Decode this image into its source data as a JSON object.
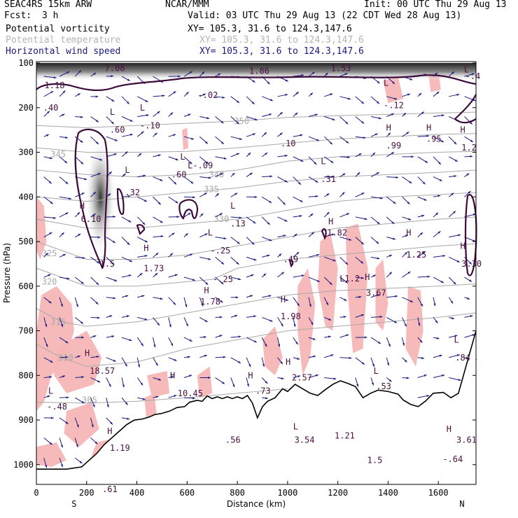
{
  "header": {
    "model": "SEAC4RS 15km ARW",
    "org": "NCAR/MMM",
    "init": "Init: 00 UTC Thu 29 Aug 13",
    "fcst_label": "Fcst:",
    "fcst_value": "3 h",
    "valid": "Valid: 03 UTC Thu 29 Aug 13 (22 CDT Wed 28 Aug 13)",
    "fields": [
      {
        "name": "Potential vorticity",
        "xy": "XY= 105.3, 31.6 to 124.3,147.6",
        "color": "#000000"
      },
      {
        "name": "Potential temperature",
        "xy": "XY= 105.3, 31.6 to 124.3,147.6",
        "color": "#b4b4b4"
      },
      {
        "name": "Horizontal wind speed",
        "xy": "XY= 105.3, 31.6 to 124.3,147.6",
        "color": "#1a1a80"
      }
    ]
  },
  "chart_data": {
    "type": "cross-section",
    "xlabel": "Distance (km)",
    "ylabel": "Pressure (hPa)",
    "xlim": [
      0,
      1750
    ],
    "ylim": [
      1000,
      100
    ],
    "x_ticks": [
      0,
      200,
      400,
      600,
      800,
      1000,
      1200,
      1400,
      1600
    ],
    "y_ticks": [
      100,
      200,
      300,
      400,
      500,
      600,
      700,
      800,
      900,
      1000
    ],
    "x_end_labels": {
      "left": "S",
      "right": "N"
    },
    "colors": {
      "pv_contour": "#3c0a3c",
      "theta": "#a8a8a8",
      "wind": "#1a1a80",
      "shading": "#f7b6b6",
      "terrain": "#000000"
    },
    "terrain": [
      [
        0,
        1010
      ],
      [
        60,
        1010
      ],
      [
        120,
        1010
      ],
      [
        180,
        1005
      ],
      [
        210,
        990
      ],
      [
        240,
        975
      ],
      [
        270,
        955
      ],
      [
        300,
        940
      ],
      [
        330,
        925
      ],
      [
        360,
        910
      ],
      [
        390,
        900
      ],
      [
        420,
        898
      ],
      [
        450,
        893
      ],
      [
        470,
        888
      ],
      [
        500,
        885
      ],
      [
        530,
        880
      ],
      [
        560,
        872
      ],
      [
        590,
        870
      ],
      [
        610,
        860
      ],
      [
        640,
        856
      ],
      [
        660,
        858
      ],
      [
        680,
        846
      ],
      [
        700,
        852
      ],
      [
        720,
        848
      ],
      [
        740,
        852
      ],
      [
        760,
        848
      ],
      [
        780,
        852
      ],
      [
        800,
        848
      ],
      [
        820,
        852
      ],
      [
        840,
        845
      ],
      [
        860,
        862
      ],
      [
        880,
        895
      ],
      [
        900,
        870
      ],
      [
        920,
        858
      ],
      [
        950,
        850
      ],
      [
        980,
        830
      ],
      [
        1000,
        836
      ],
      [
        1030,
        820
      ],
      [
        1060,
        830
      ],
      [
        1090,
        840
      ],
      [
        1120,
        845
      ],
      [
        1150,
        832
      ],
      [
        1180,
        820
      ],
      [
        1210,
        812
      ],
      [
        1240,
        818
      ],
      [
        1270,
        825
      ],
      [
        1300,
        850
      ],
      [
        1330,
        840
      ],
      [
        1360,
        833
      ],
      [
        1400,
        836
      ],
      [
        1440,
        842
      ],
      [
        1460,
        855
      ],
      [
        1490,
        865
      ],
      [
        1520,
        870
      ],
      [
        1550,
        857
      ],
      [
        1580,
        840
      ],
      [
        1620,
        838
      ],
      [
        1650,
        850
      ],
      [
        1680,
        840
      ],
      [
        1710,
        780
      ],
      [
        1730,
        740
      ],
      [
        1750,
        700
      ]
    ],
    "theta_isentropes": [
      {
        "value": 305,
        "label_at": [
          215,
          855
        ],
        "points": [
          [
            0,
            860
          ],
          [
            200,
            862
          ],
          [
            400,
            858
          ],
          [
            600,
            850
          ],
          [
            800,
            840
          ],
          [
            1000,
            830
          ]
        ]
      },
      {
        "value": 310,
        "label_at": [
          120,
          760
        ],
        "points": [
          [
            0,
            730
          ],
          [
            100,
            760
          ],
          [
            200,
            780
          ],
          [
            400,
            770
          ],
          [
            600,
            740
          ],
          [
            800,
            720
          ],
          [
            1000,
            700
          ],
          [
            1200,
            690
          ],
          [
            1400,
            680
          ],
          [
            1600,
            670
          ],
          [
            1750,
            660
          ]
        ]
      },
      {
        "value": 315,
        "label_at": [
          90,
          680
        ],
        "points": [
          [
            0,
            650
          ],
          [
            100,
            680
          ],
          [
            200,
            690
          ],
          [
            400,
            680
          ],
          [
            600,
            660
          ],
          [
            800,
            640
          ],
          [
            1000,
            620
          ],
          [
            1200,
            610
          ],
          [
            1400,
            605
          ],
          [
            1600,
            600
          ],
          [
            1750,
            595
          ]
        ]
      },
      {
        "value": 320,
        "label_at": [
          55,
          590
        ],
        "points": [
          [
            0,
            560
          ],
          [
            100,
            580
          ],
          [
            200,
            600
          ],
          [
            400,
            600
          ],
          [
            600,
            590
          ],
          [
            700,
            585
          ],
          [
            800,
            560
          ],
          [
            1000,
            540
          ],
          [
            1200,
            530
          ],
          [
            1400,
            520
          ],
          [
            1600,
            510
          ],
          [
            1750,
            505
          ]
        ]
      },
      {
        "value": 325,
        "label_at": [
          55,
          527
        ],
        "points": [
          [
            0,
            500
          ],
          [
            100,
            520
          ],
          [
            200,
            540
          ],
          [
            400,
            540
          ],
          [
            600,
            530
          ],
          [
            800,
            510
          ],
          [
            1000,
            490
          ],
          [
            1200,
            470
          ],
          [
            1400,
            460
          ],
          [
            1600,
            450
          ],
          [
            1750,
            445
          ]
        ]
      },
      {
        "value": 330,
        "label_at": [
          740,
          450
        ],
        "points": [
          [
            0,
            450
          ],
          [
            200,
            470
          ],
          [
            400,
            470
          ],
          [
            600,
            460
          ],
          [
            800,
            450
          ],
          [
            1000,
            430
          ],
          [
            1200,
            410
          ],
          [
            1400,
            400
          ],
          [
            1600,
            395
          ],
          [
            1750,
            390
          ]
        ]
      },
      {
        "value": 335,
        "label_at": [
          700,
          383
        ],
        "points": [
          [
            0,
            400
          ],
          [
            200,
            410
          ],
          [
            400,
            400
          ],
          [
            600,
            390
          ],
          [
            800,
            380
          ],
          [
            1000,
            365
          ],
          [
            1200,
            355
          ],
          [
            1400,
            350
          ],
          [
            1600,
            345
          ],
          [
            1750,
            340
          ]
        ]
      },
      {
        "value": 340,
        "label_at": [
          720,
          350
        ],
        "points": [
          [
            0,
            340
          ],
          [
            200,
            350
          ],
          [
            400,
            355
          ],
          [
            600,
            350
          ],
          [
            800,
            340
          ],
          [
            1000,
            320
          ],
          [
            1200,
            310
          ],
          [
            1400,
            305
          ],
          [
            1600,
            300
          ],
          [
            1750,
            298
          ]
        ]
      },
      {
        "value": 345,
        "label_at": [
          90,
          305
        ],
        "points": [
          [
            0,
            290
          ],
          [
            200,
            300
          ],
          [
            400,
            300
          ],
          [
            600,
            298
          ],
          [
            800,
            290
          ],
          [
            1000,
            280
          ],
          [
            1200,
            270
          ],
          [
            1400,
            265
          ],
          [
            1600,
            260
          ],
          [
            1750,
            258
          ]
        ]
      },
      {
        "value": 350,
        "label_at": [
          820,
          230
        ],
        "points": [
          [
            0,
            240
          ],
          [
            200,
            245
          ],
          [
            400,
            240
          ],
          [
            600,
            235
          ],
          [
            800,
            230
          ],
          [
            1000,
            222
          ],
          [
            1200,
            218
          ],
          [
            1400,
            215
          ],
          [
            1600,
            212
          ],
          [
            1750,
            210
          ]
        ]
      }
    ],
    "pv_labels": [
      {
        "text": "1.18",
        "x": 60,
        "p": 150
      },
      {
        "text": ".40",
        "x": 55,
        "p": 200
      },
      {
        "text": "L",
        "x": 320,
        "p": 210
      },
      {
        "text": ".60",
        "x": 320,
        "p": 250
      },
      {
        "text": "L",
        "x": 440,
        "p": 200
      },
      {
        "text": "-.10",
        "x": 440,
        "p": 240
      },
      {
        "text": "-.02",
        "x": 670,
        "p": 172
      },
      {
        "text": "1.86",
        "x": 875,
        "p": 118
      },
      {
        "text": "1.53",
        "x": 1200,
        "p": 112
      },
      {
        "text": "L",
        "x": 1410,
        "p": 145
      },
      {
        "text": "-.12",
        "x": 1410,
        "p": 195
      },
      {
        "text": "H",
        "x": 1420,
        "p": 245
      },
      {
        "text": ".99",
        "x": 1420,
        "p": 285
      },
      {
        "text": "H",
        "x": 1580,
        "p": 245
      },
      {
        "text": ".95",
        "x": 1580,
        "p": 270
      },
      {
        "text": "H",
        "x": 1715,
        "p": 250
      },
      {
        "text": "1.2",
        "x": 1720,
        "p": 290
      },
      {
        "text": ".10",
        "x": 1000,
        "p": 280
      },
      {
        "text": "L",
        "x": 600,
        "p": 310
      },
      {
        "text": ".60",
        "x": 565,
        "p": 350
      },
      {
        "text": "L-.09",
        "x": 630,
        "p": 330
      },
      {
        "text": "L",
        "x": 380,
        "p": 340
      },
      {
        "text": ".32",
        "x": 380,
        "p": 390
      },
      {
        "text": "L",
        "x": 1160,
        "p": 320
      },
      {
        "text": ".31",
        "x": 1160,
        "p": 360
      },
      {
        "text": "H",
        "x": 200,
        "p": 420
      },
      {
        "text": "6.10",
        "x": 205,
        "p": 450
      },
      {
        "text": "L",
        "x": 800,
        "p": 420
      },
      {
        "text": ".13",
        "x": 800,
        "p": 460
      },
      {
        "text": "L",
        "x": 710,
        "p": 480
      },
      {
        "text": "-.25",
        "x": 720,
        "p": 520
      },
      {
        "text": "-.25",
        "x": 730,
        "p": 585
      },
      {
        "text": "H",
        "x": 1190,
        "p": 455
      },
      {
        "text": "1.82",
        "x": 1185,
        "p": 480
      },
      {
        "text": "H",
        "x": 1500,
        "p": 480
      },
      {
        "text": "1.25",
        "x": 1500,
        "p": 530
      },
      {
        "text": "H",
        "x": 1715,
        "p": 510
      },
      {
        "text": "3.30",
        "x": 1720,
        "p": 550
      },
      {
        "text": ".49",
        "x": 1010,
        "p": 540
      },
      {
        "text": "H",
        "x": 455,
        "p": 515
      },
      {
        "text": "1.73",
        "x": 455,
        "p": 560
      },
      {
        "text": "1.5",
        "x": 280,
        "p": 550
      },
      {
        "text": "H",
        "x": 695,
        "p": 610
      },
      {
        "text": "1.78",
        "x": 680,
        "p": 635
      },
      {
        "text": "H",
        "x": 1000,
        "p": 630
      },
      {
        "text": "1.98",
        "x": 1000,
        "p": 668
      },
      {
        "text": "L",
        "x": 1235,
        "p": 583
      },
      {
        "text": "-1.2",
        "x": 1235,
        "p": 583
      },
      {
        "text": "H",
        "x": 1335,
        "p": 580
      },
      {
        "text": "3.67",
        "x": 1340,
        "p": 615
      },
      {
        "text": "L",
        "x": 1690,
        "p": 720
      },
      {
        "text": ".84",
        "x": 1695,
        "p": 760
      },
      {
        "text": "H",
        "x": 220,
        "p": 750
      },
      {
        "text": "18.57",
        "x": 240,
        "p": 790
      },
      {
        "text": "H",
        "x": 560,
        "p": 800
      },
      {
        "text": "10.45",
        "x": 590,
        "p": 840
      },
      {
        "text": "H",
        "x": 870,
        "p": 800
      },
      {
        "text": ".73",
        "x": 900,
        "p": 835
      },
      {
        "text": "H",
        "x": 1020,
        "p": 770
      },
      {
        "text": "2.57",
        "x": 1045,
        "p": 805
      },
      {
        "text": "L",
        "x": 1370,
        "p": 790
      },
      {
        "text": ".53",
        "x": 1380,
        "p": 825
      },
      {
        "text": "L",
        "x": 75,
        "p": 835
      },
      {
        "text": "-.48",
        "x": 70,
        "p": 870
      },
      {
        "text": "H",
        "x": 310,
        "p": 925
      },
      {
        "text": "1.19",
        "x": 320,
        "p": 963
      },
      {
        "text": ".56",
        "x": 780,
        "p": 945
      },
      {
        "text": "L",
        "x": 1050,
        "p": 915
      },
      {
        "text": "3.54",
        "x": 1055,
        "p": 945
      },
      {
        "text": "1.21",
        "x": 1215,
        "p": 935
      },
      {
        "text": "H",
        "x": 1660,
        "p": 920
      },
      {
        "text": "3.61",
        "x": 1700,
        "p": 945
      },
      {
        "text": "1.5",
        "x": 1345,
        "p": 990
      },
      {
        "text": "-.64",
        "x": 1645,
        "p": 988
      },
      {
        "text": ".61",
        "x": 290,
        "p": 1055
      },
      {
        "text": "7.08",
        "x": 300,
        "p": 112
      },
      {
        "text": "L",
        "x": 1730,
        "p": 115
      },
      {
        "text": "-.4",
        "x": 1735,
        "p": 130
      }
    ]
  }
}
